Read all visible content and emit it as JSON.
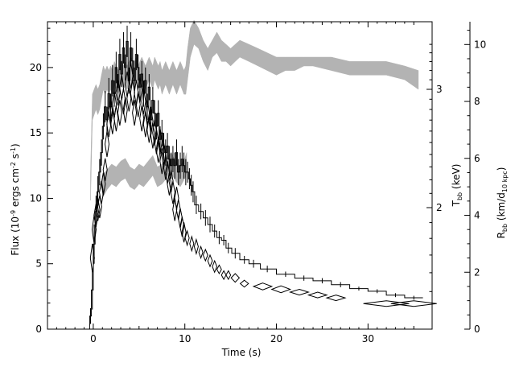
{
  "chart_data": {
    "type": "line",
    "title": "",
    "xlabel": "Time (s)",
    "ylabel": "Flux (10^-9 ergs cm^-2 s^-1)",
    "ylabel_parts": {
      "pre": "Flux (10",
      "exp1": "-9",
      "mid": " ergs cm",
      "exp2": "-2",
      "mid2": " s",
      "exp3": "-1",
      "post": ")"
    },
    "right_axis_1": {
      "label": "T_bb (keV)",
      "main": "T",
      "sub": "bb",
      "rest": " (keV)",
      "ticks": [
        2,
        3
      ]
    },
    "right_axis_2": {
      "label": "R_bb (km/d_10 kpc)",
      "main": "R",
      "sub": "bb",
      "mid": " (km/d",
      "sub2": "10 kpc",
      "post": ")",
      "ticks": [
        0,
        2,
        4,
        6,
        8,
        10
      ]
    },
    "xlim": [
      -5,
      37
    ],
    "ylim": [
      0,
      23.5
    ],
    "x_ticks": [
      0,
      10,
      20,
      30
    ],
    "y_ticks": [
      0,
      5,
      10,
      15,
      20
    ],
    "grid": false,
    "legend": "none",
    "series": [
      {
        "style": "histogram",
        "x": [
          -0.3,
          -0.1,
          0.1,
          0.3,
          0.5,
          0.7,
          0.9,
          1.1,
          1.3,
          1.5,
          1.7,
          1.9,
          2.1,
          2.3,
          2.5,
          2.7,
          2.9,
          3.1,
          3.3,
          3.5,
          3.7,
          3.9,
          4.1,
          4.3,
          4.5,
          4.7,
          4.9,
          5.1,
          5.3,
          5.5,
          5.7,
          5.9,
          6.1,
          6.3,
          6.5,
          6.7,
          6.9,
          7.1,
          7.3,
          7.5,
          7.7,
          7.9,
          8.1,
          8.3,
          8.5,
          8.7,
          8.9,
          9.1,
          9.3,
          9.5,
          9.7,
          9.9,
          10.1,
          10.3,
          10.5,
          10.7,
          10.9,
          11.25,
          11.75,
          12.25,
          12.75,
          13.25,
          13.75,
          14.25,
          14.75,
          15.5,
          16.5,
          17.5,
          19.0,
          21.0,
          23.0,
          25.0,
          27.0,
          29.0,
          31.0,
          33.0,
          35.0
        ],
        "y": [
          1.0,
          3.0,
          6.5,
          9.0,
          10.5,
          12.0,
          13.5,
          15.5,
          17.0,
          16.0,
          18.0,
          17.0,
          19.0,
          18.0,
          20.0,
          18.5,
          21.0,
          19.5,
          21.5,
          20.0,
          22.0,
          19.0,
          21.5,
          20.5,
          19.0,
          21.0,
          20.0,
          18.5,
          19.5,
          18.0,
          19.0,
          17.0,
          18.5,
          16.0,
          17.5,
          16.5,
          15.5,
          16.5,
          14.5,
          15.0,
          14.0,
          13.5,
          14.0,
          13.0,
          12.5,
          13.0,
          12.5,
          13.5,
          12.0,
          12.5,
          13.0,
          12.5,
          12.0,
          12.0,
          11.5,
          11.0,
          10.5,
          9.5,
          9.0,
          8.5,
          8.0,
          7.5,
          7.0,
          6.8,
          6.2,
          5.8,
          5.3,
          5.0,
          4.6,
          4.2,
          3.9,
          3.7,
          3.4,
          3.1,
          2.9,
          2.6,
          2.4
        ],
        "dy": [
          0.6,
          1.5,
          1.5,
          1.2,
          1.2,
          1.0,
          1.0,
          1.0,
          1.2,
          1.0,
          1.2,
          1.0,
          1.2,
          1.0,
          1.2,
          1.0,
          1.2,
          1.0,
          1.2,
          1.0,
          1.2,
          1.0,
          1.2,
          1.0,
          1.0,
          1.2,
          1.0,
          1.0,
          1.0,
          1.0,
          1.0,
          1.0,
          1.0,
          1.0,
          1.0,
          1.0,
          1.0,
          1.0,
          1.0,
          1.0,
          1.0,
          1.0,
          1.0,
          1.0,
          1.0,
          1.0,
          1.0,
          1.0,
          1.0,
          1.0,
          1.0,
          1.0,
          1.0,
          0.8,
          0.8,
          0.8,
          0.8,
          0.7,
          0.6,
          0.6,
          0.6,
          0.5,
          0.5,
          0.4,
          0.4,
          0.4,
          0.3,
          0.3,
          0.25,
          0.2,
          0.2,
          0.2,
          0.2,
          0.15,
          0.15,
          0.15,
          0.15
        ]
      },
      {
        "style": "diamonds",
        "axis": "R_bb",
        "x": [
          -0.1,
          0.1,
          0.3,
          0.5,
          0.7,
          0.9,
          1.1,
          1.3,
          1.5,
          1.7,
          1.9,
          2.1,
          2.3,
          2.5,
          2.7,
          2.9,
          3.1,
          3.3,
          3.5,
          3.7,
          3.9,
          4.1,
          4.3,
          4.5,
          4.7,
          4.9,
          5.1,
          5.3,
          5.5,
          5.7,
          5.9,
          6.1,
          6.3,
          6.5,
          6.7,
          6.9,
          7.1,
          7.3,
          7.5,
          7.7,
          7.9,
          8.1,
          8.3,
          8.5,
          8.7,
          8.9,
          9.1,
          9.3,
          9.5,
          9.7,
          9.9,
          10.25,
          10.75,
          11.25,
          11.75,
          12.25,
          12.75,
          13.25,
          13.75,
          14.25,
          14.75,
          15.5,
          16.5,
          18.5,
          20.5,
          22.5,
          24.5,
          26.5,
          32.0,
          35.0
        ],
        "y": [
          2.5,
          3.5,
          4.0,
          4.2,
          4.3,
          4.8,
          5.1,
          5.6,
          6.5,
          7.2,
          7.6,
          7.3,
          7.9,
          7.4,
          8.3,
          7.6,
          8.5,
          8.0,
          7.7,
          8.6,
          8.1,
          8.9,
          8.3,
          7.6,
          8.3,
          7.9,
          8.4,
          7.4,
          8.0,
          7.2,
          7.6,
          7.0,
          7.3,
          6.8,
          6.9,
          6.6,
          6.3,
          6.6,
          5.9,
          6.1,
          5.7,
          5.5,
          5.1,
          5.2,
          4.8,
          4.2,
          4.6,
          4.2,
          3.9,
          3.6,
          3.4,
          3.2,
          3.0,
          2.9,
          2.7,
          2.6,
          2.4,
          2.2,
          2.1,
          1.9,
          1.9,
          1.8,
          1.6,
          1.5,
          1.4,
          1.3,
          1.2,
          1.1,
          0.9,
          0.9
        ],
        "dx": [
          0.08,
          0.08,
          0.08,
          0.08,
          0.08,
          0.08,
          0.08,
          0.08,
          0.08,
          0.08,
          0.08,
          0.08,
          0.08,
          0.08,
          0.08,
          0.08,
          0.08,
          0.08,
          0.08,
          0.08,
          0.08,
          0.08,
          0.08,
          0.08,
          0.08,
          0.08,
          0.08,
          0.08,
          0.08,
          0.08,
          0.08,
          0.08,
          0.08,
          0.08,
          0.08,
          0.08,
          0.08,
          0.08,
          0.08,
          0.08,
          0.08,
          0.08,
          0.08,
          0.08,
          0.08,
          0.08,
          0.08,
          0.08,
          0.08,
          0.08,
          0.08,
          0.2,
          0.2,
          0.2,
          0.2,
          0.25,
          0.25,
          0.25,
          0.25,
          0.25,
          0.25,
          0.45,
          0.45,
          1.0,
          1.0,
          1.0,
          1.0,
          1.0,
          2.5,
          2.5
        ],
        "dy": [
          0.5,
          0.5,
          0.4,
          0.4,
          0.4,
          0.4,
          0.4,
          0.4,
          0.45,
          0.45,
          0.45,
          0.45,
          0.45,
          0.45,
          0.45,
          0.45,
          0.45,
          0.45,
          0.45,
          0.45,
          0.45,
          0.45,
          0.45,
          0.45,
          0.45,
          0.45,
          0.45,
          0.45,
          0.45,
          0.45,
          0.45,
          0.45,
          0.45,
          0.45,
          0.45,
          0.45,
          0.45,
          0.45,
          0.45,
          0.45,
          0.45,
          0.4,
          0.4,
          0.4,
          0.4,
          0.4,
          0.4,
          0.35,
          0.35,
          0.35,
          0.35,
          0.25,
          0.25,
          0.25,
          0.2,
          0.2,
          0.2,
          0.2,
          0.15,
          0.15,
          0.15,
          0.15,
          0.12,
          0.12,
          0.12,
          0.1,
          0.1,
          0.1,
          0.08,
          0.08
        ]
      },
      {
        "style": "band",
        "axis": "T_bb",
        "x": [
          -0.3,
          -0.1,
          0.1,
          0.3,
          0.5,
          0.7,
          0.9,
          1.1,
          1.3,
          1.5,
          1.7,
          1.9,
          2.1,
          2.3,
          2.5,
          2.7,
          2.9,
          3.1,
          3.3,
          3.5,
          3.7,
          3.9,
          4.1,
          4.3,
          4.5,
          4.7,
          4.9,
          5.1,
          5.3,
          5.5,
          5.7,
          5.9,
          6.1,
          6.3,
          6.5,
          6.7,
          6.9,
          7.1,
          7.3,
          7.5,
          7.7,
          7.9,
          8.1,
          8.3,
          8.5,
          8.7,
          8.9,
          9.1,
          9.3,
          9.5,
          9.7,
          9.9,
          10.1,
          10.3,
          10.6,
          11.0,
          11.5,
          12.0,
          12.5,
          13.0,
          13.5,
          14.0,
          14.5,
          15.0,
          15.5,
          16.0,
          17.0,
          18.0,
          19.0,
          20.0,
          21.0,
          22.0,
          23.0,
          24.0,
          26.0,
          28.0,
          30.0,
          32.0,
          34.0,
          35.5
        ],
        "lo": [
          2.05,
          2.7,
          2.75,
          2.8,
          2.75,
          2.8,
          2.9,
          3.0,
          2.95,
          3.0,
          2.95,
          3.0,
          2.95,
          3.05,
          3.0,
          2.95,
          3.0,
          3.05,
          3.0,
          3.05,
          3.0,
          3.05,
          3.1,
          3.05,
          3.05,
          3.1,
          3.0,
          3.05,
          3.1,
          3.05,
          3.0,
          3.05,
          3.1,
          3.05,
          3.0,
          3.1,
          3.05,
          3.0,
          3.05,
          2.95,
          3.0,
          3.05,
          3.0,
          2.95,
          3.0,
          3.05,
          3.0,
          2.95,
          3.0,
          3.05,
          3.0,
          2.95,
          2.95,
          3.1,
          3.35,
          3.5,
          3.45,
          3.3,
          3.2,
          3.35,
          3.4,
          3.3,
          3.3,
          3.25,
          3.3,
          3.35,
          3.3,
          3.25,
          3.2,
          3.15,
          3.2,
          3.2,
          3.25,
          3.25,
          3.2,
          3.15,
          3.15,
          3.15,
          3.1,
          3.0
        ],
        "hi": [
          2.25,
          2.95,
          3.0,
          3.05,
          3.0,
          3.05,
          3.15,
          3.25,
          3.2,
          3.25,
          3.2,
          3.25,
          3.2,
          3.3,
          3.25,
          3.2,
          3.25,
          3.3,
          3.25,
          3.3,
          3.25,
          3.3,
          3.35,
          3.3,
          3.3,
          3.35,
          3.25,
          3.3,
          3.35,
          3.3,
          3.25,
          3.3,
          3.35,
          3.3,
          3.25,
          3.35,
          3.3,
          3.25,
          3.3,
          3.2,
          3.25,
          3.3,
          3.25,
          3.2,
          3.25,
          3.3,
          3.25,
          3.2,
          3.25,
          3.3,
          3.25,
          3.2,
          3.25,
          3.45,
          3.7,
          3.8,
          3.7,
          3.55,
          3.45,
          3.55,
          3.65,
          3.55,
          3.5,
          3.45,
          3.5,
          3.55,
          3.5,
          3.45,
          3.4,
          3.35,
          3.35,
          3.35,
          3.35,
          3.35,
          3.35,
          3.3,
          3.3,
          3.3,
          3.25,
          3.2
        ]
      },
      {
        "style": "band",
        "axis": "R_bb",
        "x": [
          1.0,
          1.5,
          2.0,
          2.5,
          3.0,
          3.5,
          4.0,
          4.5,
          5.0,
          5.5,
          6.0,
          6.5,
          7.0,
          7.5,
          8.0,
          8.5,
          9.0,
          9.5,
          10.0,
          10.2
        ],
        "lo": [
          4.6,
          4.9,
          5.1,
          5.0,
          5.2,
          5.3,
          5.0,
          4.9,
          5.1,
          5.0,
          5.2,
          5.4,
          5.0,
          5.1,
          5.3,
          5.5,
          5.2,
          5.0,
          5.3,
          5.5
        ],
        "hi": [
          5.4,
          5.6,
          5.8,
          5.7,
          5.9,
          6.0,
          5.7,
          5.6,
          5.8,
          5.7,
          5.9,
          6.1,
          5.7,
          5.8,
          6.0,
          6.2,
          5.9,
          5.7,
          6.0,
          6.2
        ]
      }
    ]
  }
}
